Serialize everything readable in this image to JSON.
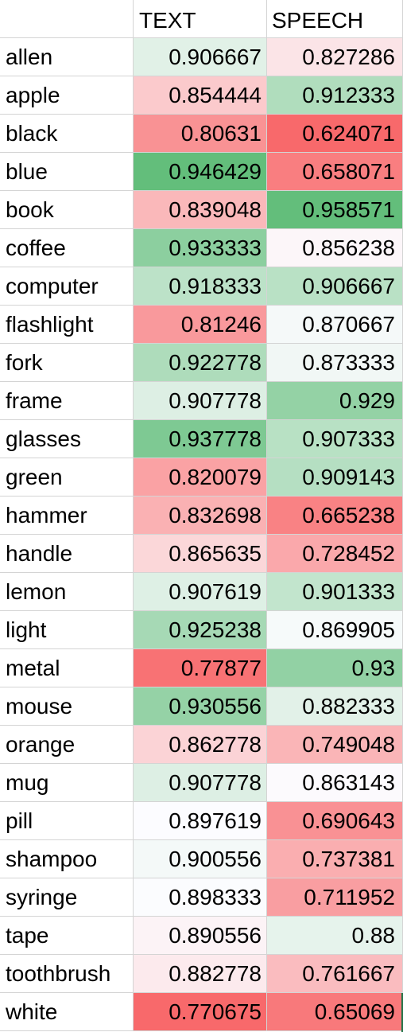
{
  "headers": {
    "name": "",
    "text": "TEXT",
    "speech": "SPEECH"
  },
  "rows": [
    {
      "name": "allen",
      "text": "0.906667",
      "speech": "0.827286"
    },
    {
      "name": "apple",
      "text": "0.854444",
      "speech": "0.912333"
    },
    {
      "name": "black",
      "text": "0.80631",
      "speech": "0.624071"
    },
    {
      "name": "blue",
      "text": "0.946429",
      "speech": "0.658071"
    },
    {
      "name": "book",
      "text": "0.839048",
      "speech": "0.958571"
    },
    {
      "name": "coffee",
      "text": "0.933333",
      "speech": "0.856238"
    },
    {
      "name": "computer",
      "text": "0.918333",
      "speech": "0.906667"
    },
    {
      "name": "flashlight",
      "text": "0.81246",
      "speech": "0.870667"
    },
    {
      "name": "fork",
      "text": "0.922778",
      "speech": "0.873333"
    },
    {
      "name": "frame",
      "text": "0.907778",
      "speech": "0.929"
    },
    {
      "name": "glasses",
      "text": "0.937778",
      "speech": "0.907333"
    },
    {
      "name": "green",
      "text": "0.820079",
      "speech": "0.909143"
    },
    {
      "name": "hammer",
      "text": "0.832698",
      "speech": "0.665238"
    },
    {
      "name": "handle",
      "text": "0.865635",
      "speech": "0.728452"
    },
    {
      "name": "lemon",
      "text": "0.907619",
      "speech": "0.901333"
    },
    {
      "name": "light",
      "text": "0.925238",
      "speech": "0.869905"
    },
    {
      "name": "metal",
      "text": "0.77877",
      "speech": "0.93"
    },
    {
      "name": "mouse",
      "text": "0.930556",
      "speech": "0.882333"
    },
    {
      "name": "orange",
      "text": "0.862778",
      "speech": "0.749048"
    },
    {
      "name": "mug",
      "text": "0.907778",
      "speech": "0.863143"
    },
    {
      "name": "pill",
      "text": "0.897619",
      "speech": "0.690643"
    },
    {
      "name": "shampoo",
      "text": "0.900556",
      "speech": "0.737381"
    },
    {
      "name": "syringe",
      "text": "0.898333",
      "speech": "0.711952"
    },
    {
      "name": "tape",
      "text": "0.890556",
      "speech": "0.88"
    },
    {
      "name": "toothbrush",
      "text": "0.882778",
      "speech": "0.761667"
    },
    {
      "name": "white",
      "text": "0.770675",
      "speech": "0.65069"
    }
  ],
  "colors": {
    "low": "#f8696b",
    "mid": "#fcfcff",
    "high": "#63be7b",
    "gridline": "#d4d4d4",
    "selection": "#217346"
  }
}
